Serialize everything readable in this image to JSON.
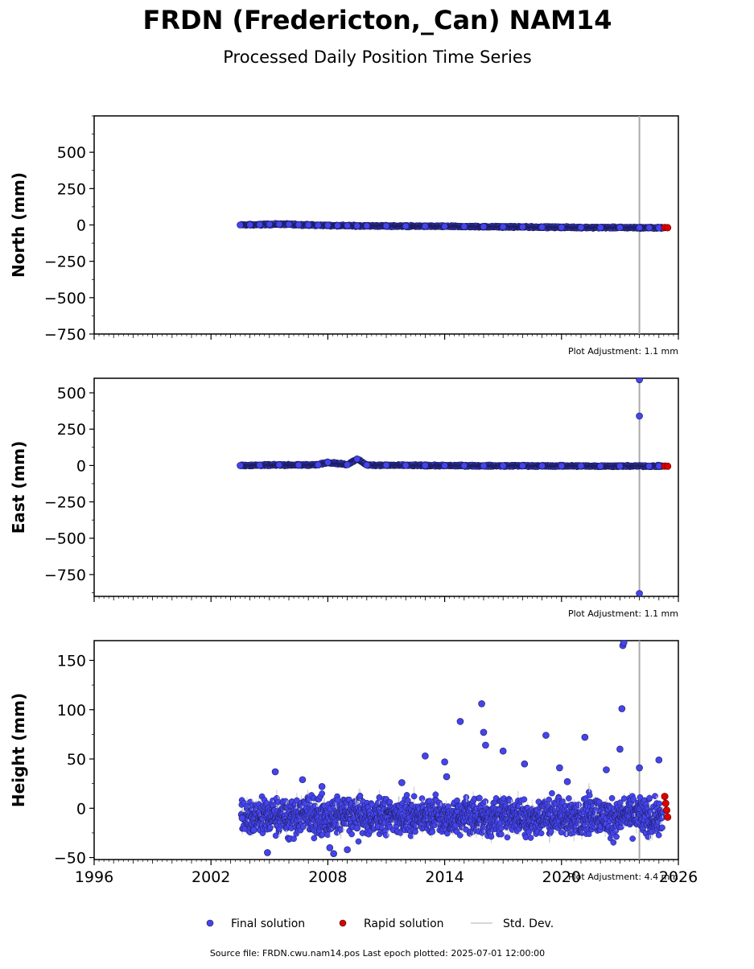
{
  "figure": {
    "title": "FRDN (Fredericton,_Can) NAM14",
    "subtitle": "Processed Daily Position Time Series",
    "footer": "Source file: FRDN.cwu.nam14.pos  Last epoch plotted: 2025-07-01 12:00:00"
  },
  "legend": {
    "final_label": "Final solution",
    "rapid_label": "Rapid solution",
    "std_label": "Std. Dev."
  },
  "colors": {
    "final": "#4444ee",
    "rapid": "#dd0000",
    "std": "#cccccc",
    "vline": "#aaaaaa"
  },
  "chart_data": [
    {
      "type": "scatter",
      "ylabel": "North (mm)",
      "ylim": [
        -750,
        750
      ],
      "yticks": [
        500,
        250,
        0,
        -250,
        -500,
        -750
      ],
      "xlim": [
        1996,
        2026
      ],
      "adjustment_label": "Plot Adjustment: 1.1 mm",
      "vertical_line_x": 2024.0,
      "series": [
        {
          "name": "Final solution",
          "x": [
            2003.5,
            2004.0,
            2004.5,
            2005.0,
            2005.5,
            2006.0,
            2006.5,
            2007.0,
            2007.5,
            2008.0,
            2008.5,
            2009.0,
            2009.5,
            2010.0,
            2011.0,
            2012.0,
            2013.0,
            2014.0,
            2015.0,
            2016.0,
            2017.0,
            2018.0,
            2019.0,
            2020.0,
            2021.0,
            2022.0,
            2023.0,
            2024.0,
            2024.5,
            2025.0
          ],
          "y": [
            0,
            1,
            2,
            4,
            5,
            4,
            2,
            0,
            -2,
            -3,
            -4,
            -5,
            -6,
            -6,
            -7,
            -8,
            -9,
            -10,
            -11,
            -12,
            -13,
            -14,
            -15,
            -16,
            -17,
            -18,
            -18,
            -19,
            -19,
            -20
          ]
        },
        {
          "name": "Rapid solution",
          "x": [
            2025.3,
            2025.45
          ],
          "y": [
            -18,
            -19
          ]
        }
      ]
    },
    {
      "type": "scatter",
      "ylabel": "East (mm)",
      "ylim": [
        -900,
        600
      ],
      "yticks": [
        500,
        250,
        0,
        -250,
        -500,
        -750
      ],
      "xlim": [
        1996,
        2026
      ],
      "adjustment_label": "Plot Adjustment: 1.1 mm",
      "vertical_line_x": 2024.0,
      "series": [
        {
          "name": "Final solution",
          "x": [
            2003.5,
            2004.5,
            2005.5,
            2006.5,
            2007.5,
            2008.0,
            2009.0,
            2009.5,
            2010.0,
            2011.0,
            2012.0,
            2013.0,
            2014.0,
            2015.0,
            2016.0,
            2017.0,
            2018.0,
            2019.0,
            2020.0,
            2021.0,
            2022.0,
            2023.0,
            2024.0,
            2024.0,
            2024.0,
            2024.5,
            2025.0
          ],
          "y": [
            0,
            2,
            4,
            3,
            5,
            22,
            6,
            45,
            3,
            2,
            1,
            0,
            -1,
            -1,
            -2,
            -2,
            -2,
            -3,
            -3,
            -3,
            -4,
            -4,
            590,
            340,
            -880,
            -4,
            -4
          ]
        },
        {
          "name": "Rapid solution",
          "x": [
            2025.3,
            2025.45
          ],
          "y": [
            -4,
            -5
          ]
        }
      ]
    },
    {
      "type": "scatter",
      "ylabel": "Height (mm)",
      "ylim": [
        -52,
        170
      ],
      "yticks": [
        150,
        100,
        50,
        0,
        -50
      ],
      "xlim": [
        1996,
        2026
      ],
      "xticks": [
        "1996",
        "2002",
        "2008",
        "2014",
        "2020",
        "2026"
      ],
      "adjustment_label": "Plot Adjustment: 4.4 mm",
      "vertical_line_x": 2024.0,
      "series": [
        {
          "name": "Final solution",
          "x": [
            2003.6,
            2004.2,
            2004.9,
            2005.3,
            2006.7,
            2007.7,
            2008.1,
            2008.3,
            2009.0,
            2009.5,
            2011.8,
            2013.0,
            2014.0,
            2014.1,
            2014.8,
            2015.9,
            2016.0,
            2016.1,
            2017.0,
            2018.1,
            2019.2,
            2019.9,
            2020.3,
            2021.2,
            2022.3,
            2023.0,
            2023.1,
            2023.15,
            2023.2,
            2024.0,
            2025.0
          ],
          "y": [
            -10,
            -22,
            -45,
            37,
            29,
            22,
            -40,
            -46,
            -42,
            -20,
            26,
            53,
            47,
            32,
            88,
            106,
            77,
            64,
            58,
            45,
            74,
            41,
            27,
            72,
            39,
            60,
            101,
            165,
            168,
            41,
            49
          ]
        },
        {
          "name": "Rapid solution",
          "x": [
            2025.3,
            2025.35,
            2025.4,
            2025.45
          ],
          "y": [
            12,
            5,
            -2,
            -9
          ]
        }
      ]
    }
  ]
}
